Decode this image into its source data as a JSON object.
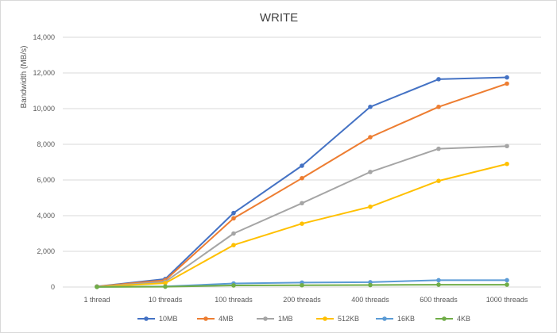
{
  "chart_data": {
    "type": "line",
    "title": "WRITE",
    "xlabel": "",
    "ylabel": "Bandwidth (MB/s)",
    "categories": [
      "1 thread",
      "10 threads",
      "100 threads",
      "200 threads",
      "400 threads",
      "600 threads",
      "1000 threads"
    ],
    "ylim": [
      0,
      14000
    ],
    "yticks": [
      0,
      2000,
      4000,
      6000,
      8000,
      10000,
      12000,
      14000
    ],
    "ytick_labels": [
      "0",
      "2,000",
      "4,000",
      "6,000",
      "8,000",
      "10,000",
      "12,000",
      "14,000"
    ],
    "grid": true,
    "legend_position": "bottom",
    "series": [
      {
        "name": "10MB",
        "color": "#4472c4",
        "values": [
          30,
          450,
          4150,
          6800,
          10100,
          11650,
          11750
        ]
      },
      {
        "name": "4MB",
        "color": "#ed7d31",
        "values": [
          25,
          380,
          3850,
          6100,
          8400,
          10100,
          11400
        ]
      },
      {
        "name": "1MB",
        "color": "#a5a5a5",
        "values": [
          20,
          300,
          3000,
          4700,
          6450,
          7750,
          7900
        ]
      },
      {
        "name": "512KB",
        "color": "#ffc000",
        "values": [
          15,
          220,
          2350,
          3550,
          4500,
          5950,
          6900
        ]
      },
      {
        "name": "16KB",
        "color": "#5b9bd5",
        "values": [
          10,
          30,
          200,
          250,
          270,
          380,
          380
        ]
      },
      {
        "name": "4KB",
        "color": "#70ad47",
        "values": [
          5,
          20,
          90,
          100,
          110,
          130,
          130
        ]
      }
    ]
  }
}
